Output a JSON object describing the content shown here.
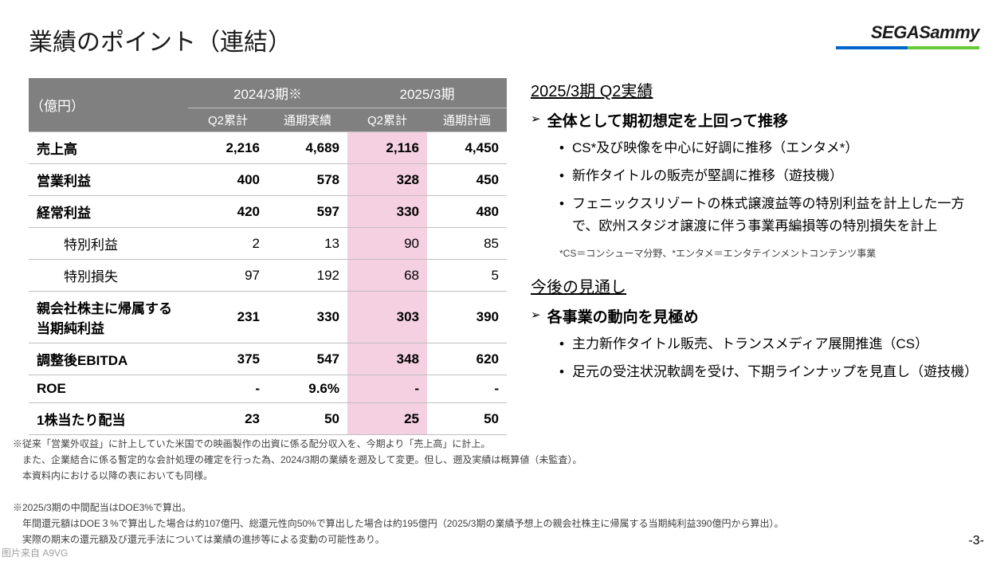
{
  "title": "業績のポイント（連結）",
  "logo": {
    "text_sega": "SEGA",
    "text_sammy": "Sammy",
    "bar_blue": "#0066cc",
    "bar_green": "#66cc33"
  },
  "table": {
    "unit": "（億円）",
    "period_a": "2024/3期※",
    "period_b": "2025/3期",
    "col_a1": "Q2累計",
    "col_a2": "通期実績",
    "col_b1": "Q2累計",
    "col_b2": "通期計画",
    "highlight_col": 2,
    "highlight_color": "#f5d0e0",
    "rows": [
      {
        "label": "売上高",
        "sub": false,
        "v": [
          "2,216",
          "4,689",
          "2,116",
          "4,450"
        ]
      },
      {
        "label": "営業利益",
        "sub": false,
        "v": [
          "400",
          "578",
          "328",
          "450"
        ]
      },
      {
        "label": "経常利益",
        "sub": false,
        "v": [
          "420",
          "597",
          "330",
          "480"
        ]
      },
      {
        "label": "特別利益",
        "sub": true,
        "v": [
          "2",
          "13",
          "90",
          "85"
        ]
      },
      {
        "label": "特別損失",
        "sub": true,
        "v": [
          "97",
          "192",
          "68",
          "5"
        ]
      },
      {
        "label": "親会社株主に帰属する\n当期純利益",
        "sub": false,
        "v": [
          "231",
          "330",
          "303",
          "390"
        ]
      },
      {
        "label": "調整後EBITDA",
        "sub": false,
        "v": [
          "375",
          "547",
          "348",
          "620"
        ]
      },
      {
        "label": "ROE",
        "sub": false,
        "v": [
          "-",
          "9.6%",
          "-",
          "-"
        ]
      },
      {
        "label": "1株当たり配当",
        "sub": false,
        "v": [
          "23",
          "50",
          "25",
          "50"
        ]
      }
    ]
  },
  "right": {
    "sec1_title": "2025/3期 Q2実績",
    "sec1_head": "全体として期初想定を上回って推移",
    "sec1_bullets": [
      "CS*及び映像を中心に好調に推移（エンタメ*）",
      "新作タイトルの販売が堅調に推移（遊技機）",
      "フェニックスリゾートの株式譲渡益等の特別利益を計上した一方で、欧州スタジオ譲渡に伴う事業再編損等の特別損失を計上"
    ],
    "sec1_note": "*CS＝コンシューマ分野、*エンタメ＝エンタテインメントコンテンツ事業",
    "sec2_title": "今後の見通し",
    "sec2_head": "各事業の動向を見極め",
    "sec2_bullets": [
      "主力新作タイトル販売、トランスメディア展開推進（CS）",
      "足元の受注状況軟調を受け、下期ラインナップを見直し（遊技機）"
    ]
  },
  "footnotes": [
    "※従来「営業外収益」に計上していた米国での映画製作の出資に係る配分収入を、今期より「売上高」に計上。",
    "　また、企業結合に係る暫定的な会計処理の確定を行った為、2024/3期の業績を遡及して変更。但し、遡及実績は概算値（未監査）。",
    "　本資料内における以降の表においても同様。",
    "",
    "※2025/3期の中間配当はDOE3%で算出。",
    "　年間還元額はDOE３%で算出した場合は約107億円、総還元性向50%で算出した場合は約195億円（2025/3期の業績予想上の親会社株主に帰属する当期純利益390億円から算出）。",
    "　実際の期末の還元額及び還元手法については業績の進捗等による変動の可能性あり。"
  ],
  "page_num": "-3-",
  "watermark": "图片来自 A9VG"
}
